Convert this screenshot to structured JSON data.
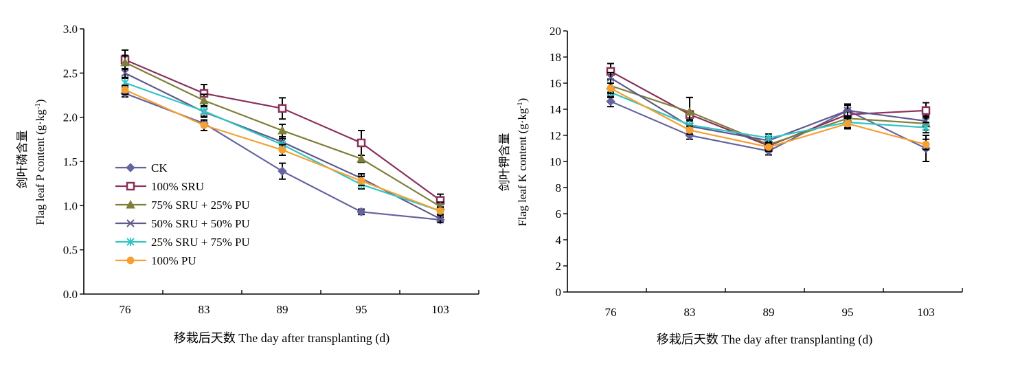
{
  "colors": {
    "CK": "#6464A0",
    "100% SRU": "#8B2F5C",
    "75% SRU + 25% PU": "#7F7F3A",
    "50% SRU + 50% PU": "#5E5A8C",
    "25% SRU + 75% PU": "#33C4C4",
    "100% PU": "#F4A033"
  },
  "chart_data": [
    {
      "type": "line",
      "ylabel_cn": "剑叶磷含量",
      "ylabel_en": "Flag leaf P content (g·kg",
      "ylabel_sup": "-1",
      "ylabel_close": ")",
      "xlabel": "移栽后天数 The day after transplanting (d)",
      "categories": [
        "76",
        "83",
        "89",
        "95",
        "103"
      ],
      "ylim": [
        0,
        3.0
      ],
      "yticks": [
        "0.0",
        "0.5",
        "1.0",
        "1.5",
        "2.0",
        "2.5",
        "3.0"
      ],
      "legend_position": "bottom-left",
      "series": [
        {
          "name": "CK",
          "marker": "diamond",
          "values": [
            2.27,
            1.93,
            1.39,
            0.93,
            0.84
          ],
          "err": [
            0.04,
            0.03,
            0.09,
            0.03,
            0.03
          ]
        },
        {
          "name": "100% SRU",
          "marker": "square",
          "values": [
            2.65,
            2.27,
            2.1,
            1.71,
            1.06
          ],
          "err": [
            0.11,
            0.1,
            0.12,
            0.14,
            0.07
          ]
        },
        {
          "name": "75% SRU + 25% PU",
          "marker": "triangle",
          "values": [
            2.62,
            2.19,
            1.85,
            1.53,
            0.99
          ],
          "err": [
            0.08,
            0.07,
            0.07,
            0.04,
            0.05
          ]
        },
        {
          "name": "50% SRU + 50% PU",
          "marker": "x",
          "values": [
            2.5,
            2.06,
            1.72,
            1.31,
            0.85
          ],
          "err": [
            0.05,
            0.06,
            0.06,
            0.05,
            0.04
          ]
        },
        {
          "name": "25% SRU + 75% PU",
          "marker": "asterisk",
          "values": [
            2.39,
            2.07,
            1.69,
            1.24,
            0.94
          ],
          "err": [
            0.05,
            0.06,
            0.07,
            0.05,
            0.04
          ]
        },
        {
          "name": "100% PU",
          "marker": "circle",
          "values": [
            2.31,
            1.91,
            1.63,
            1.28,
            0.94
          ],
          "err": [
            0.05,
            0.06,
            0.06,
            0.05,
            0.04
          ]
        }
      ]
    },
    {
      "type": "line",
      "ylabel_cn": "剑叶钾含量",
      "ylabel_en": "Flag leaf K content (g·kg",
      "ylabel_sup": "-1",
      "ylabel_close": ")",
      "xlabel": "移栽后天数 The day after transplanting (d)",
      "categories": [
        "76",
        "83",
        "89",
        "95",
        "103"
      ],
      "ylim": [
        0,
        20
      ],
      "yticks": [
        "0",
        "2",
        "4",
        "6",
        "8",
        "10",
        "12",
        "14",
        "16",
        "18",
        "20"
      ],
      "series": [
        {
          "name": "CK",
          "marker": "diamond",
          "values": [
            14.6,
            12.0,
            10.8,
            13.9,
            11.0
          ],
          "err": [
            0.4,
            0.3,
            0.3,
            0.4,
            1.0
          ]
        },
        {
          "name": "100% SRU",
          "marker": "square",
          "values": [
            16.9,
            13.6,
            11.2,
            13.6,
            13.9
          ],
          "err": [
            0.6,
            1.3,
            0.4,
            0.8,
            0.6
          ]
        },
        {
          "name": "75% SRU + 25% PU",
          "marker": "triangle",
          "values": [
            15.8,
            13.8,
            11.3,
            13.3,
            12.9
          ],
          "err": [
            0.5,
            1.1,
            0.4,
            0.5,
            0.5
          ]
        },
        {
          "name": "50% SRU + 50% PU",
          "marker": "x",
          "values": [
            16.4,
            12.7,
            11.6,
            13.9,
            13.1
          ],
          "err": [
            0.4,
            0.4,
            0.3,
            0.4,
            0.4
          ]
        },
        {
          "name": "25% SRU + 75% PU",
          "marker": "asterisk",
          "values": [
            15.3,
            12.8,
            11.8,
            13.0,
            12.6
          ],
          "err": [
            0.4,
            0.4,
            0.3,
            0.4,
            0.4
          ]
        },
        {
          "name": "100% PU",
          "marker": "circle",
          "values": [
            15.6,
            12.4,
            11.1,
            12.9,
            11.3
          ],
          "err": [
            0.4,
            0.3,
            0.3,
            0.4,
            0.4
          ]
        }
      ]
    }
  ]
}
